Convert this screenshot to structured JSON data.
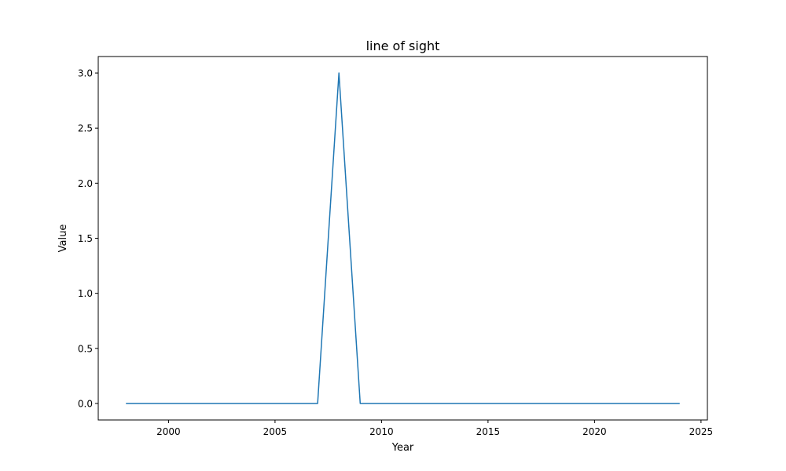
{
  "chart_data": {
    "type": "line",
    "title": "line of sight",
    "xlabel": "Year",
    "ylabel": "Value",
    "xlim": [
      1996.7,
      2025.3
    ],
    "ylim": [
      -0.15,
      3.15
    ],
    "x_ticks": [
      2000,
      2005,
      2010,
      2015,
      2020,
      2025
    ],
    "y_ticks": [
      "0.0",
      "0.5",
      "1.0",
      "1.5",
      "2.0",
      "2.5",
      "3.0"
    ],
    "grid": false,
    "legend": "none",
    "series": [
      {
        "color": "#1f77b4",
        "x": [
          1998,
          1999,
          2000,
          2001,
          2002,
          2003,
          2004,
          2005,
          2006,
          2007,
          2008,
          2009,
          2010,
          2011,
          2012,
          2013,
          2014,
          2015,
          2016,
          2017,
          2018,
          2019,
          2020,
          2021,
          2022,
          2023,
          2024
        ],
        "values": [
          0,
          0,
          0,
          0,
          0,
          0,
          0,
          0,
          0,
          0,
          3,
          0,
          0,
          0,
          0,
          0,
          0,
          0,
          0,
          0,
          0,
          0,
          0,
          0,
          0,
          0,
          0
        ]
      }
    ]
  }
}
